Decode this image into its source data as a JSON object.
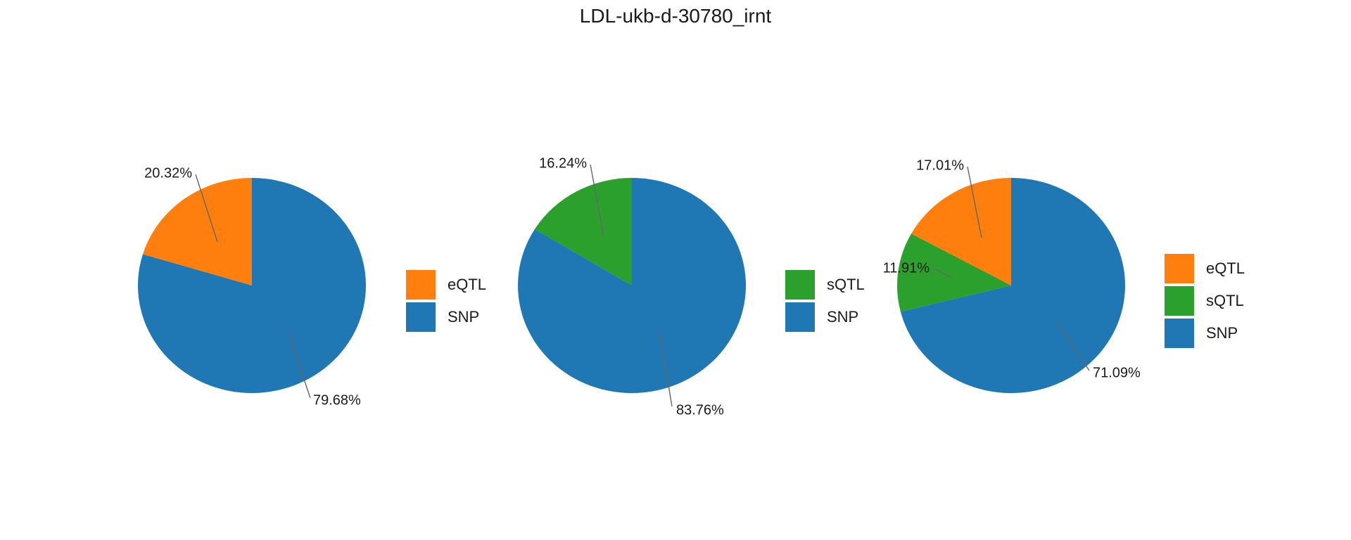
{
  "title": "LDL-ukb-d-30780_irnt",
  "colors": {
    "eQTL": "#ff7f0e",
    "sQTL": "#2ca02c",
    "SNP": "#1f77b4"
  },
  "chart_data": [
    {
      "type": "pie",
      "title": "",
      "slices": [
        {
          "name": "eQTL",
          "value": 20.32,
          "label": "20.32%"
        },
        {
          "name": "SNP",
          "value": 79.68,
          "label": "79.68%"
        }
      ],
      "legend": [
        "eQTL",
        "SNP"
      ],
      "legend_position": "right"
    },
    {
      "type": "pie",
      "title": "",
      "slices": [
        {
          "name": "sQTL",
          "value": 16.24,
          "label": "16.24%"
        },
        {
          "name": "SNP",
          "value": 83.76,
          "label": "83.76%"
        }
      ],
      "legend": [
        "sQTL",
        "SNP"
      ],
      "legend_position": "right"
    },
    {
      "type": "pie",
      "title": "",
      "slices": [
        {
          "name": "eQTL",
          "value": 17.01,
          "label": "17.01%"
        },
        {
          "name": "sQTL",
          "value": 11.91,
          "label": "11.91%"
        },
        {
          "name": "SNP",
          "value": 71.09,
          "label": "71.09%"
        }
      ],
      "legend": [
        "eQTL",
        "sQTL",
        "SNP"
      ],
      "legend_position": "right"
    }
  ]
}
